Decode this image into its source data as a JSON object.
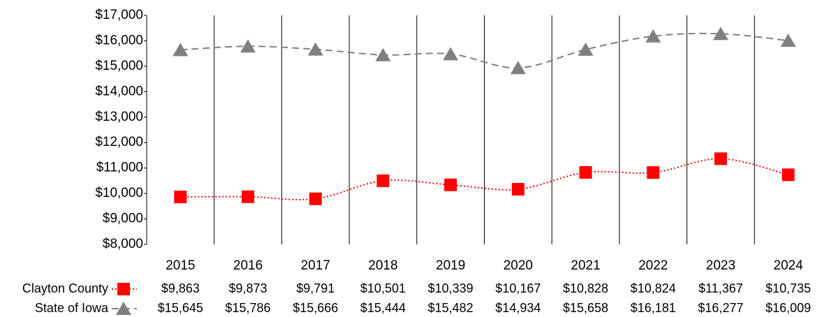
{
  "chart_data": {
    "type": "line",
    "categories": [
      "2015",
      "2016",
      "2017",
      "2018",
      "2019",
      "2020",
      "2021",
      "2022",
      "2023",
      "2024"
    ],
    "series": [
      {
        "name": "Clayton County",
        "color": "#ff0000",
        "marker": "square",
        "line_style": "dotted",
        "values": [
          9863,
          9873,
          9791,
          10501,
          10339,
          10167,
          10828,
          10824,
          11367,
          10735
        ],
        "value_labels": [
          "$9,863",
          "$9,873",
          "$9,791",
          "$10,501",
          "$10,339",
          "$10,167",
          "$10,828",
          "$10,824",
          "$11,367",
          "$10,735"
        ]
      },
      {
        "name": "State of Iowa",
        "color": "#808080",
        "marker": "triangle",
        "line_style": "dashed",
        "values": [
          15645,
          15786,
          15666,
          15444,
          15482,
          14934,
          15658,
          16181,
          16277,
          16009
        ],
        "value_labels": [
          "$15,645",
          "$15,786",
          "$15,666",
          "$15,444",
          "$15,482",
          "$14,934",
          "$15,658",
          "$16,181",
          "$16,277",
          "$16,009"
        ]
      }
    ],
    "ylim": [
      8000,
      17000
    ],
    "yticks": [
      {
        "value": 8000,
        "label": "$8,000"
      },
      {
        "value": 9000,
        "label": "$9,000"
      },
      {
        "value": 10000,
        "label": "$10,000"
      },
      {
        "value": 11000,
        "label": "$11,000"
      },
      {
        "value": 12000,
        "label": "$12,000"
      },
      {
        "value": 13000,
        "label": "$13,000"
      },
      {
        "value": 14000,
        "label": "$14,000"
      },
      {
        "value": 15000,
        "label": "$15,000"
      },
      {
        "value": 16000,
        "label": "$16,000"
      },
      {
        "value": 17000,
        "label": "$17,000"
      }
    ]
  }
}
